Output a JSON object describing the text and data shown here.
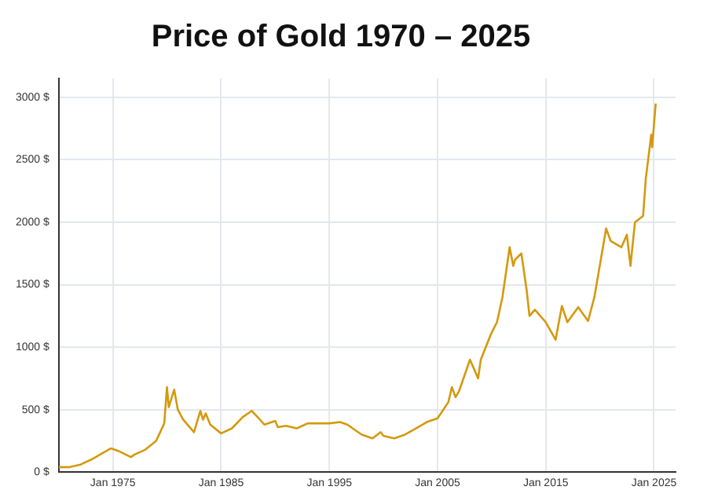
{
  "chart_data": {
    "type": "line",
    "title": "Price of Gold 1970 – 2025",
    "x": [
      "1970-01",
      "1971-01",
      "1972-01",
      "1973-01",
      "1974-01",
      "1974-11",
      "1975-07",
      "1976-09",
      "1977-01",
      "1978-01",
      "1979-01",
      "1979-10",
      "1980-01",
      "1980-03",
      "1980-09",
      "1981-01",
      "1981-07",
      "1982-07",
      "1983-02",
      "1983-05",
      "1983-08",
      "1984-01",
      "1985-01",
      "1986-01",
      "1987-01",
      "1987-11",
      "1988-07",
      "1989-01",
      "1990-01",
      "1990-04",
      "1991-01",
      "1992-01",
      "1993-01",
      "1994-01",
      "1995-01",
      "1996-01",
      "1996-09",
      "1997-07",
      "1998-01",
      "1999-01",
      "1999-10",
      "2000-01",
      "2001-01",
      "2002-01",
      "2003-01",
      "2004-01",
      "2005-01",
      "2006-01",
      "2006-05",
      "2006-09",
      "2007-01",
      "2008-01",
      "2008-10",
      "2009-01",
      "2009-12",
      "2010-07",
      "2011-01",
      "2011-09",
      "2012-01",
      "2012-03",
      "2012-10",
      "2013-04",
      "2013-07",
      "2014-01",
      "2015-01",
      "2015-12",
      "2016-07",
      "2017-01",
      "2018-01",
      "2018-12",
      "2019-07",
      "2020-08",
      "2021-01",
      "2022-01",
      "2022-07",
      "2022-11",
      "2023-04",
      "2024-01",
      "2024-04",
      "2024-10",
      "2024-11",
      "2025-03"
    ],
    "series": [
      {
        "color": "#d4990f",
        "values": [
          40,
          40,
          60,
          100,
          150,
          190,
          170,
          120,
          140,
          180,
          250,
          390,
          680,
          520,
          660,
          500,
          420,
          320,
          490,
          420,
          470,
          380,
          310,
          350,
          440,
          490,
          430,
          380,
          410,
          360,
          370,
          350,
          390,
          390,
          390,
          400,
          380,
          330,
          300,
          270,
          320,
          290,
          270,
          300,
          350,
          400,
          430,
          560,
          680,
          600,
          650,
          900,
          750,
          900,
          1100,
          1200,
          1400,
          1800,
          1650,
          1700,
          1750,
          1450,
          1250,
          1300,
          1200,
          1060,
          1330,
          1200,
          1320,
          1210,
          1400,
          1950,
          1850,
          1800,
          1900,
          1650,
          2000,
          2050,
          2350,
          2700,
          2600,
          2950
        ]
      }
    ],
    "xlim": [
      "1970-01",
      "2027-01"
    ],
    "xticks": [
      {
        "value": "1975-01",
        "label": "Jan 1975"
      },
      {
        "value": "1985-01",
        "label": "Jan 1985"
      },
      {
        "value": "1995-01",
        "label": "Jan 1995"
      },
      {
        "value": "2005-01",
        "label": "Jan 2005"
      },
      {
        "value": "2015-01",
        "label": "Jan 2015"
      },
      {
        "value": "2025-01",
        "label": "Jan 2025"
      }
    ],
    "ylim": [
      0,
      3150
    ],
    "yticks": [
      {
        "value": 0,
        "label": "0 $"
      },
      {
        "value": 500,
        "label": "500 $"
      },
      {
        "value": 1000,
        "label": "1000 $"
      },
      {
        "value": 1500,
        "label": "1500 $"
      },
      {
        "value": 2000,
        "label": "2000 $"
      },
      {
        "value": 2500,
        "label": "2500 $"
      },
      {
        "value": 3000,
        "label": "3000 $"
      }
    ],
    "grid": true,
    "marker": "none",
    "line_style": "solid"
  }
}
